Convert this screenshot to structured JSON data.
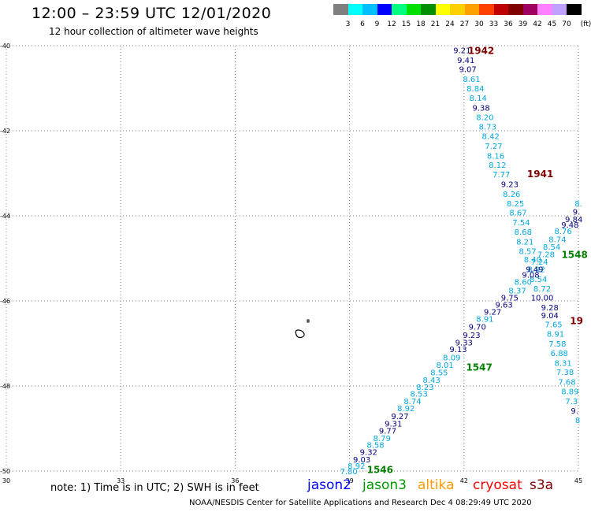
{
  "header": {
    "title": "12:00 – 23:59 UTC 12/01/2020",
    "subtitle": "12 hour collection of altimeter wave heights"
  },
  "colorbar": {
    "colors": [
      "#7f7f7f",
      "#00ffff",
      "#00bfff",
      "#0000ff",
      "#00ff80",
      "#00e000",
      "#008f00",
      "#ffff00",
      "#ffd000",
      "#ffa000",
      "#ff4000",
      "#c00000",
      "#800000",
      "#a00060",
      "#ff80ff",
      "#c0a0ff",
      "#000000"
    ],
    "labels": [
      "3",
      "6",
      "9",
      "12",
      "15",
      "18",
      "21",
      "24",
      "27",
      "30",
      "33",
      "36",
      "39",
      "42",
      "45",
      "70",
      "(ft)"
    ]
  },
  "axes": {
    "x_ticks": [
      {
        "value": 30,
        "label": "30"
      },
      {
        "value": 33,
        "label": "33"
      },
      {
        "value": 36,
        "label": "36"
      },
      {
        "value": 39,
        "label": "39"
      },
      {
        "value": 42,
        "label": "42"
      },
      {
        "value": 45,
        "label": "45"
      }
    ],
    "y_ticks": [
      {
        "value": -40,
        "label": "-40"
      },
      {
        "value": -42,
        "label": "-42"
      },
      {
        "value": -44,
        "label": "-44"
      },
      {
        "value": -46,
        "label": "-46"
      },
      {
        "value": -48,
        "label": "-48"
      },
      {
        "value": -50,
        "label": "-50"
      }
    ],
    "x_range": [
      30,
      45
    ],
    "y_range": [
      -50,
      -40
    ]
  },
  "colors": {
    "dark_blue": "#00007f",
    "light_blue": "#00a8e0",
    "time_red": "#800000",
    "time_green": "#007f00",
    "grid": "#888888",
    "jason2": "#0000ff",
    "jason3": "#009900",
    "altika": "#ff9900",
    "cryosat": "#ff0000",
    "s3a": "#800000"
  },
  "map_data": {
    "tracks": [
      {
        "time_label": "1942",
        "time_color": "time_red",
        "time_lon": 42.45,
        "time_lat": -40.1,
        "points": [
          {
            "lon": 41.95,
            "lat": -40.1,
            "v": "9.21",
            "c": "dark_blue"
          },
          {
            "lon": 42.05,
            "lat": -40.33,
            "v": "9.41",
            "c": "dark_blue"
          },
          {
            "lon": 42.1,
            "lat": -40.55,
            "v": "9.07",
            "c": "dark_blue"
          },
          {
            "lon": 42.2,
            "lat": -40.78,
            "v": "8.61",
            "c": "light_blue"
          },
          {
            "lon": 42.3,
            "lat": -41.0,
            "v": "8.84",
            "c": "light_blue"
          },
          {
            "lon": 42.37,
            "lat": -41.22,
            "v": "8.14",
            "c": "light_blue"
          },
          {
            "lon": 42.45,
            "lat": -41.45,
            "v": "9.38",
            "c": "dark_blue"
          },
          {
            "lon": 42.55,
            "lat": -41.68,
            "v": "8.20",
            "c": "light_blue"
          },
          {
            "lon": 42.62,
            "lat": -41.9,
            "v": "8.73",
            "c": "light_blue"
          },
          {
            "lon": 42.7,
            "lat": -42.12,
            "v": "8.42",
            "c": "light_blue"
          },
          {
            "lon": 42.78,
            "lat": -42.35,
            "v": "7.27",
            "c": "light_blue"
          },
          {
            "lon": 42.83,
            "lat": -42.58,
            "v": "8.16",
            "c": "light_blue"
          },
          {
            "lon": 42.88,
            "lat": -42.8,
            "v": "8.12",
            "c": "light_blue"
          },
          {
            "lon": 42.98,
            "lat": -43.02,
            "v": "7.77",
            "c": "light_blue"
          }
        ]
      },
      {
        "time_label": "1941",
        "time_color": "time_red",
        "time_lon": 44.0,
        "time_lat": -43.0,
        "points": [
          {
            "lon": 43.2,
            "lat": -43.25,
            "v": "9.23",
            "c": "dark_blue"
          },
          {
            "lon": 43.25,
            "lat": -43.48,
            "v": "8.26",
            "c": "light_blue"
          },
          {
            "lon": 43.35,
            "lat": -43.7,
            "v": "8.25",
            "c": "light_blue"
          },
          {
            "lon": 43.42,
            "lat": -43.92,
            "v": "8.67",
            "c": "light_blue"
          },
          {
            "lon": 43.5,
            "lat": -44.15,
            "v": "7.54",
            "c": "light_blue"
          },
          {
            "lon": 43.55,
            "lat": -44.37,
            "v": "8.68",
            "c": "light_blue"
          },
          {
            "lon": 43.6,
            "lat": -44.6,
            "v": "8.21",
            "c": "light_blue"
          },
          {
            "lon": 43.67,
            "lat": -44.82,
            "v": "8.57",
            "c": "light_blue"
          },
          {
            "lon": 43.8,
            "lat": -45.02,
            "v": "8.40",
            "c": "light_blue"
          },
          {
            "lon": 43.9,
            "lat": -45.25,
            "v": "8.92",
            "c": "light_blue"
          },
          {
            "lon": 43.95,
            "lat": -45.48,
            "v": "8.54",
            "c": "light_blue"
          },
          {
            "lon": 44.05,
            "lat": -45.7,
            "v": "8.72",
            "c": "light_blue"
          },
          {
            "lon": 44.05,
            "lat": -45.92,
            "v": "10.00",
            "c": "dark_blue"
          },
          {
            "lon": 44.25,
            "lat": -46.15,
            "v": "9.28",
            "c": "dark_blue"
          },
          {
            "lon": 44.25,
            "lat": -46.33,
            "v": "9.04",
            "c": "dark_blue"
          },
          {
            "lon": 44.35,
            "lat": -46.55,
            "v": "7.65",
            "c": "light_blue"
          },
          {
            "lon": 44.4,
            "lat": -46.77,
            "v": "8.91",
            "c": "light_blue"
          },
          {
            "lon": 44.45,
            "lat": -47.0,
            "v": "7.58",
            "c": "light_blue"
          },
          {
            "lon": 44.5,
            "lat": -47.22,
            "v": "6.88",
            "c": "light_blue"
          },
          {
            "lon": 44.6,
            "lat": -47.45,
            "v": "8.31",
            "c": "light_blue"
          },
          {
            "lon": 44.65,
            "lat": -47.67,
            "v": "7.38",
            "c": "light_blue"
          },
          {
            "lon": 44.7,
            "lat": -47.9,
            "v": "7.68",
            "c": "light_blue"
          },
          {
            "lon": 44.78,
            "lat": -48.12,
            "v": "8.89",
            "c": "light_blue"
          },
          {
            "lon": 44.82,
            "lat": -48.35,
            "v": "7.3",
            "c": "light_blue"
          },
          {
            "lon": 44.9,
            "lat": -48.57,
            "v": "9.",
            "c": "dark_blue"
          },
          {
            "lon": 44.98,
            "lat": -48.8,
            "v": "8",
            "c": "light_blue"
          }
        ]
      },
      {
        "time_label": "1548",
        "time_color": "time_green",
        "time_lon": 44.9,
        "time_lat": -44.9,
        "points": [
          {
            "lon": 45.0,
            "lat": -43.7,
            "v": "8.",
            "c": "light_blue"
          },
          {
            "lon": 44.95,
            "lat": -43.9,
            "v": "9.",
            "c": "dark_blue"
          },
          {
            "lon": 44.88,
            "lat": -44.07,
            "v": "9.84",
            "c": "dark_blue"
          },
          {
            "lon": 44.78,
            "lat": -44.2,
            "v": "9.48",
            "c": "dark_blue"
          },
          {
            "lon": 44.6,
            "lat": -44.35,
            "v": "8.76",
            "c": "light_blue"
          },
          {
            "lon": 44.45,
            "lat": -44.55,
            "v": "8.74",
            "c": "light_blue"
          },
          {
            "lon": 44.3,
            "lat": -44.72,
            "v": "8.54",
            "c": "light_blue"
          },
          {
            "lon": 44.15,
            "lat": -44.9,
            "v": "7.28",
            "c": "light_blue"
          },
          {
            "lon": 43.98,
            "lat": -45.07,
            "v": "7.24",
            "c": "light_blue"
          },
          {
            "lon": 43.85,
            "lat": -45.25,
            "v": "9.49",
            "c": "dark_blue"
          },
          {
            "lon": 43.75,
            "lat": -45.38,
            "v": "9.08",
            "c": "dark_blue"
          },
          {
            "lon": 43.55,
            "lat": -45.55,
            "v": "8.60",
            "c": "light_blue"
          },
          {
            "lon": 43.4,
            "lat": -45.75,
            "v": "8.37",
            "c": "light_blue"
          },
          {
            "lon": 43.2,
            "lat": -45.92,
            "v": "9.75",
            "c": "dark_blue"
          },
          {
            "lon": 43.05,
            "lat": -46.08,
            "v": "9.63",
            "c": "dark_blue"
          },
          {
            "lon": 42.75,
            "lat": -46.25,
            "v": "9.27",
            "c": "dark_blue"
          },
          {
            "lon": 42.55,
            "lat": -46.42,
            "v": "8.91",
            "c": "light_blue"
          },
          {
            "lon": 42.35,
            "lat": -46.6,
            "v": "9.70",
            "c": "dark_blue"
          },
          {
            "lon": 42.2,
            "lat": -46.8,
            "v": "9.23",
            "c": "dark_blue"
          },
          {
            "lon": 42.0,
            "lat": -46.97,
            "v": "9.33",
            "c": "dark_blue"
          },
          {
            "lon": 41.85,
            "lat": -47.13,
            "v": "9.13",
            "c": "dark_blue"
          },
          {
            "lon": 41.68,
            "lat": -47.32,
            "v": "8.09",
            "c": "light_blue"
          },
          {
            "lon": 41.5,
            "lat": -47.5,
            "v": "8.01",
            "c": "light_blue"
          },
          {
            "lon": 41.35,
            "lat": -47.68,
            "v": "8.55",
            "c": "light_blue"
          },
          {
            "lon": 41.15,
            "lat": -47.85,
            "v": "8.43",
            "c": "light_blue"
          },
          {
            "lon": 40.98,
            "lat": -48.02,
            "v": "8.23",
            "c": "light_blue"
          },
          {
            "lon": 40.82,
            "lat": -48.18,
            "v": "8.53",
            "c": "light_blue"
          },
          {
            "lon": 40.65,
            "lat": -48.35,
            "v": "8.74",
            "c": "light_blue"
          },
          {
            "lon": 40.48,
            "lat": -48.52,
            "v": "8.92",
            "c": "light_blue"
          },
          {
            "lon": 40.32,
            "lat": -48.7,
            "v": "9.27",
            "c": "dark_blue"
          },
          {
            "lon": 40.15,
            "lat": -48.88,
            "v": "9.31",
            "c": "dark_blue"
          },
          {
            "lon": 40.0,
            "lat": -49.05,
            "v": "9.77",
            "c": "dark_blue"
          },
          {
            "lon": 39.85,
            "lat": -49.22,
            "v": "8.79",
            "c": "light_blue"
          },
          {
            "lon": 39.68,
            "lat": -49.38,
            "v": "8.58",
            "c": "light_blue"
          },
          {
            "lon": 39.5,
            "lat": -49.55,
            "v": "9.32",
            "c": "dark_blue"
          },
          {
            "lon": 39.32,
            "lat": -49.72,
            "v": "9.03",
            "c": "dark_blue"
          },
          {
            "lon": 39.18,
            "lat": -49.87,
            "v": "8.92",
            "c": "light_blue"
          },
          {
            "lon": 38.98,
            "lat": -50.0,
            "v": "7.80",
            "c": "light_blue"
          }
        ]
      }
    ],
    "extra_time_labels": [
      {
        "label": "1547",
        "color": "time_green",
        "lon": 42.4,
        "lat": -47.55
      },
      {
        "label": "1546",
        "color": "time_green",
        "lon": 39.8,
        "lat": -49.95
      },
      {
        "label": "19",
        "color": "time_red",
        "lon": 44.95,
        "lat": -46.45
      }
    ]
  },
  "footer_note": {
    "note": "note:  1) Time is in UTC;  2) SWH is in feet",
    "satellites": [
      {
        "name": "jason2",
        "color": "jason2"
      },
      {
        "name": "jason3",
        "color": "jason3"
      },
      {
        "name": "altika",
        "color": "altika"
      },
      {
        "name": "cryosat",
        "color": "cryosat"
      },
      {
        "name": "s3a",
        "color": "s3a"
      }
    ],
    "credit": "NOAA/NESDIS Center for Satellite Applications and Research     Dec  4 08:29:49 UTC 2020"
  }
}
